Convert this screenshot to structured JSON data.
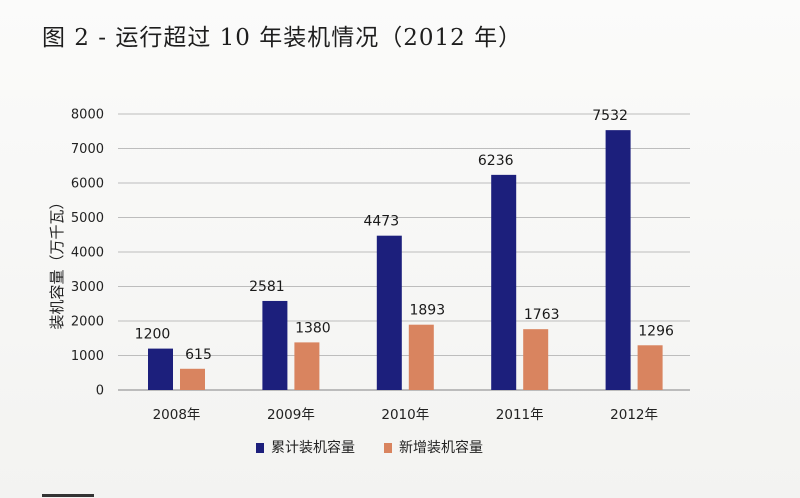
{
  "figure": {
    "title": "图 2 - 运行超过 10 年装机情况（2012 年）"
  },
  "chart_data": {
    "type": "bar",
    "title": "图 2 - 运行超过 10 年装机情况（2012 年）",
    "xlabel": "",
    "ylabel": "装机容量（万千瓦）",
    "ylim": [
      0,
      8000
    ],
    "yticks": [
      0,
      1000,
      2000,
      3000,
      4000,
      5000,
      6000,
      7000,
      8000
    ],
    "categories": [
      "2008年",
      "2009年",
      "2010年",
      "2011年",
      "2012年"
    ],
    "grid": true,
    "legend_position": "bottom",
    "data_labels": true,
    "series": [
      {
        "name": "累计装机容量",
        "values": [
          1200,
          2581,
          4473,
          6236,
          7532
        ],
        "color": "#1c1f7c"
      },
      {
        "name": "新增装机容量",
        "values": [
          615,
          1380,
          1893,
          1763,
          1296
        ],
        "color": "#d9845f"
      }
    ]
  }
}
